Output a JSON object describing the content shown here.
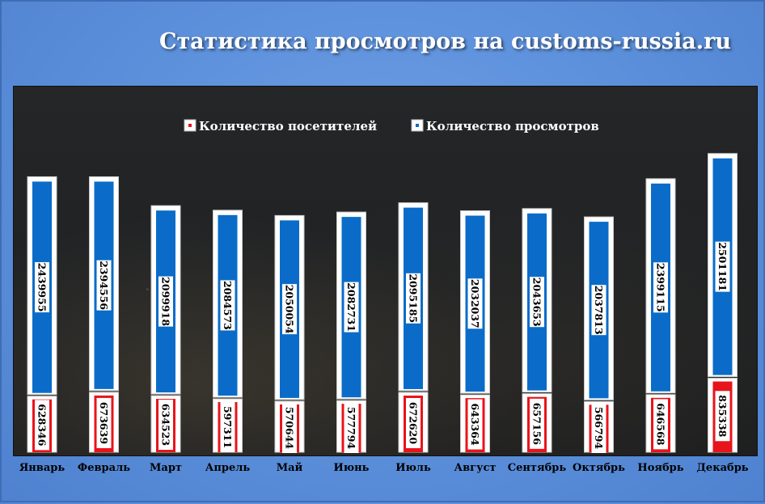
{
  "title": "Статистика просмотров на customs-russia.ru",
  "chart_data": {
    "type": "bar",
    "stacked": true,
    "categories": [
      "Январь",
      "Февраль",
      "Март",
      "Апрель",
      "Май",
      "Июнь",
      "Июль",
      "Август",
      "Сентябрь",
      "Октябрь",
      "Ноябрь",
      "Декабрь"
    ],
    "series": [
      {
        "name": "Количество посетителей",
        "color": "#e8141b",
        "values": [
          628346,
          673639,
          634523,
          597311,
          570644,
          577794,
          672620,
          643364,
          657156,
          566794,
          646568,
          835338
        ]
      },
      {
        "name": "Количество просмотров",
        "color": "#0a6cc8",
        "values": [
          2439955,
          2394556,
          2099918,
          2084573,
          2050054,
          2082731,
          2095185,
          2032037,
          2043653,
          2037813,
          2399115,
          2501181
        ]
      }
    ],
    "ylim": [
      0,
      4100000
    ],
    "legend_position": "top",
    "grid": false
  }
}
